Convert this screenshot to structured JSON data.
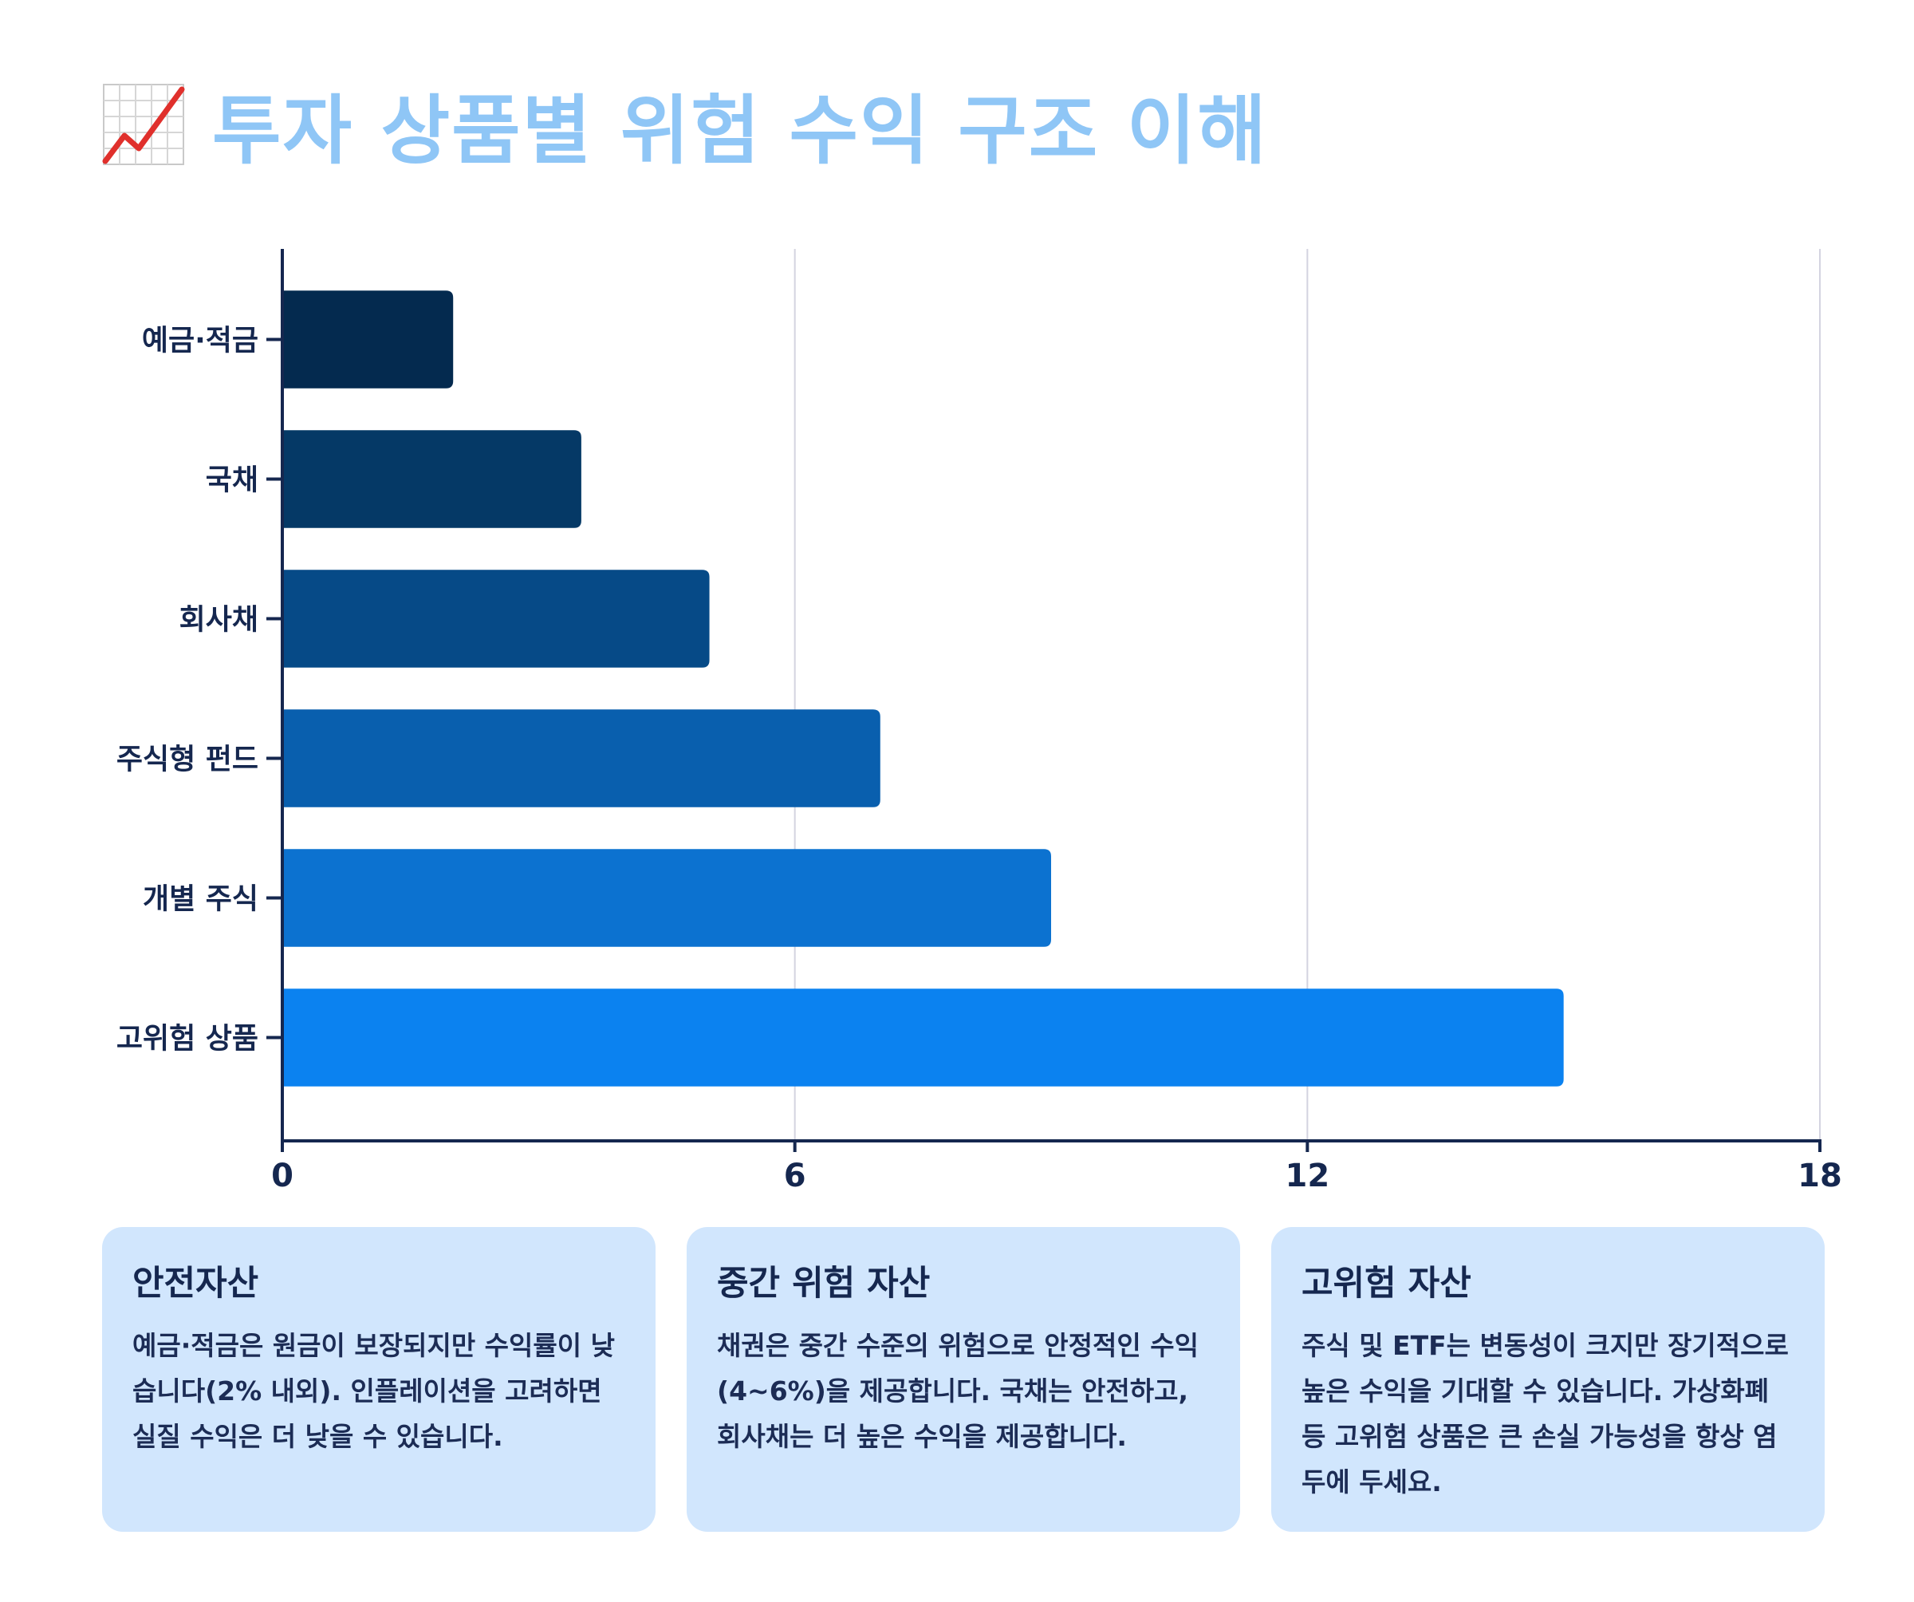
{
  "header": {
    "icon": "chart-increasing-icon",
    "title": "투자 상품별 위험 수익 구조 이해"
  },
  "chart_data": {
    "type": "bar",
    "orientation": "horizontal",
    "title": "투자 상품별 위험 수익 구조 이해",
    "xlabel": "",
    "ylabel": "",
    "categories": [
      "예금·적금",
      "국채",
      "회사채",
      "주식형 펀드",
      "개별 주식",
      "고위험 상품"
    ],
    "values": [
      2,
      3.5,
      5,
      7,
      9,
      15
    ],
    "xlim": [
      0,
      18
    ],
    "xticks": [
      0,
      6,
      12,
      18
    ],
    "xtick_labels": [
      "0",
      "6",
      "12",
      "18"
    ],
    "grid": "vertical",
    "legend": "none",
    "colors": [
      "#042a4f",
      "#053966",
      "#064a87",
      "#095fae",
      "#0c72d0",
      "#0b82f0"
    ]
  },
  "cards": [
    {
      "title": "안전자산",
      "body": "예금·적금은 원금이 보장되지만 수익률이 낮습니다(2% 내외). 인플레이션을 고려하면 실질 수익은 더 낮을 수 있습니다."
    },
    {
      "title": "중간 위험 자산",
      "body": "채권은 중간 수준의 위험으로 안정적인 수익(4~6%)을 제공합니다. 국채는 안전하고, 회사채는 더 높은 수익을 제공합니다."
    },
    {
      "title": "고위험 자산",
      "body": "주식 및 ETF는 변동성이 크지만 장기적으로 높은 수익을 기대할 수 있습니다. 가상화폐 등 고위험 상품은 큰 손실 가능성을 항상 염두에 두세요."
    }
  ],
  "colors": {
    "title": "#8fc6f6",
    "axis": "#15274f",
    "grid": "#d4d4e0",
    "card_bg": "#d1e6fd",
    "card_text": "#1c2c55"
  }
}
